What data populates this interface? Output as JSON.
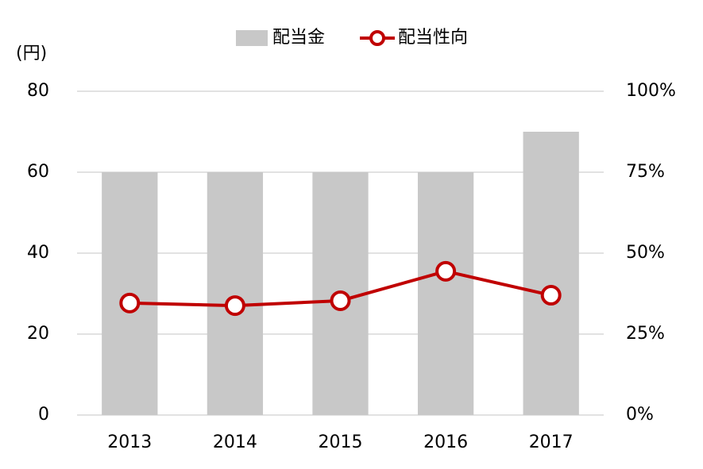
{
  "chart_data": {
    "type": "combo",
    "y_label": "(円)",
    "categories": [
      "2013",
      "2014",
      "2015",
      "2016",
      "2017"
    ],
    "series": [
      {
        "name": "配当金",
        "type": "bar",
        "color": "#c8c8c8",
        "values": [
          60,
          60,
          60,
          60,
          70
        ]
      },
      {
        "name": "配当性向",
        "type": "line",
        "axis": "y2",
        "color": "#c00000",
        "values": [
          34.6,
          33.8,
          35.3,
          44.4,
          37.0
        ]
      }
    ],
    "ylim": [
      0,
      80
    ],
    "yticks": [
      0,
      20,
      40,
      60,
      80
    ],
    "y2lim": [
      0,
      100
    ],
    "y2ticks": [
      {
        "value": 0,
        "label": "0%"
      },
      {
        "value": 25,
        "label": "25%"
      },
      {
        "value": 50,
        "label": "50%"
      },
      {
        "value": 75,
        "label": "75%"
      },
      {
        "value": 100,
        "label": "100%"
      }
    ],
    "grid": true,
    "legend": "top"
  }
}
